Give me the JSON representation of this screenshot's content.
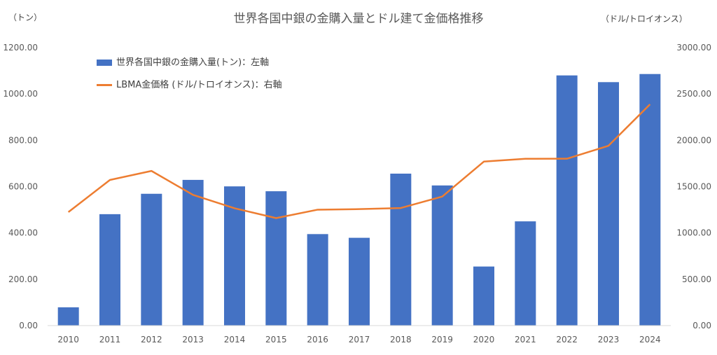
{
  "chart_data": {
    "type": "bar",
    "title": "世界各国中銀の金購入量とドル建て金価格推移",
    "left_unit": "（トン）",
    "right_unit": "（ドル/トロイオンス）",
    "categories": [
      "2010",
      "2011",
      "2012",
      "2013",
      "2014",
      "2015",
      "2016",
      "2017",
      "2018",
      "2019",
      "2020",
      "2021",
      "2022",
      "2023",
      "2024"
    ],
    "series": [
      {
        "name": "世界各国中銀の金購入量(トン)：左軸",
        "type": "bar",
        "axis": "left",
        "color": "#4472C4",
        "values": [
          79,
          481,
          569,
          629,
          601,
          580,
          395,
          379,
          656,
          605,
          255,
          450,
          1080,
          1051,
          1086
        ]
      },
      {
        "name": "LBMA金価格 (ドル/トロイオンス)：右軸",
        "type": "line",
        "axis": "right",
        "color": "#ED7D31",
        "values": [
          1225,
          1572,
          1669,
          1411,
          1266,
          1160,
          1251,
          1257,
          1269,
          1393,
          1770,
          1800,
          1801,
          1941,
          2388
        ]
      }
    ],
    "y_left": {
      "min": 0,
      "max": 1200,
      "step": 200,
      "ticks": [
        "0.00",
        "200.00",
        "400.00",
        "600.00",
        "800.00",
        "1000.00",
        "1200.00"
      ]
    },
    "y_right": {
      "min": 0,
      "max": 3000,
      "step": 500,
      "ticks": [
        "0.00",
        "500.00",
        "1000.00",
        "1500.00",
        "2000.00",
        "2500.00",
        "3000.00"
      ]
    },
    "grid": false,
    "legend": "top-left"
  }
}
